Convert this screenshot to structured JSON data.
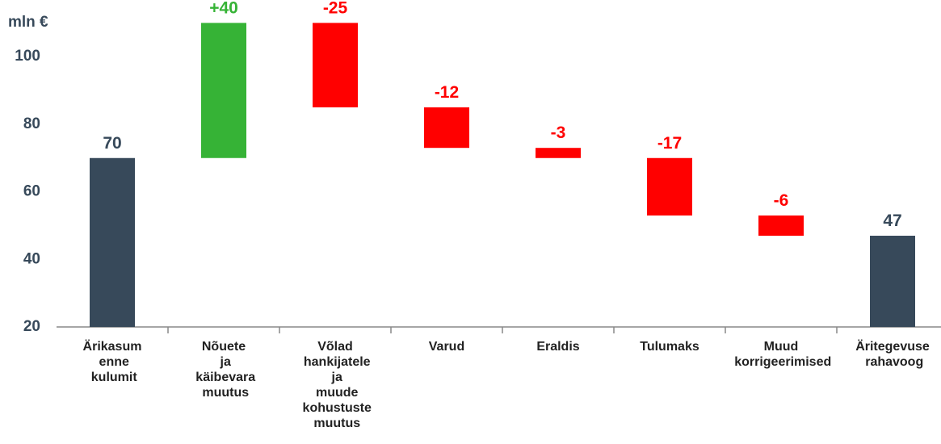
{
  "chart_data": {
    "type": "waterfall",
    "y_label": "mln €",
    "categories": [
      "Ärikasum enne kulumit",
      "Nõuete ja käibevara muutus",
      "Võlad hankijatele ja muude kohustuste muutus",
      "Varud",
      "Eraldis",
      "Tulumaks",
      "Muud korrigeerimised",
      "Äritegevuse rahavoog"
    ],
    "values": [
      70,
      40,
      -25,
      -12,
      -3,
      -17,
      -6,
      47
    ],
    "value_labels": [
      "70",
      "+40",
      "-25",
      "-12",
      "-3",
      "-17",
      "-6",
      "47"
    ],
    "colors": [
      "#37495a",
      "#36b336",
      "#ff0000",
      "#ff0000",
      "#ff0000",
      "#ff0000",
      "#ff0000",
      "#37495a"
    ],
    "ylim": [
      20,
      112
    ],
    "yticks": [
      20,
      40,
      60,
      80,
      100
    ],
    "grid": false
  }
}
